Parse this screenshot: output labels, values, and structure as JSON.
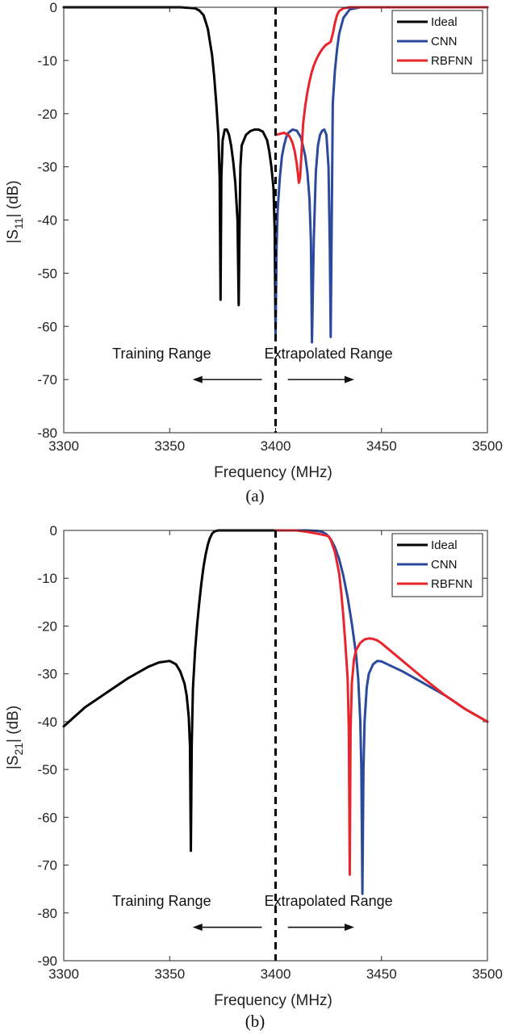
{
  "chart_data": [
    {
      "type": "line",
      "id": "a",
      "caption": "(a)",
      "xlabel": "Frequency (MHz)",
      "ylabel": {
        "pre": "|S",
        "sub": "11",
        "post": "| (dB)"
      },
      "xlim": [
        3300,
        3500
      ],
      "ylim": [
        -80,
        0
      ],
      "xticks": [
        3300,
        3350,
        3400,
        3450,
        3500
      ],
      "yticks": [
        0,
        -10,
        -20,
        -30,
        -40,
        -50,
        -60,
        -70,
        -80
      ],
      "divider_x": 3400,
      "legend": {
        "position": "top-right",
        "entries": [
          "Ideal",
          "CNN",
          "RBFNN"
        ]
      },
      "annotations": {
        "left_text": "Training Range",
        "right_text": "Extrapolated Range",
        "text_y": -66,
        "arrow_y": -70,
        "left_arrow": [
          3336,
          3362
        ],
        "right_arrow": [
          3402,
          3436
        ]
      },
      "series": [
        {
          "name": "Ideal",
          "color": "#000000",
          "x": [
            3300,
            3355,
            3362,
            3364,
            3366,
            3368,
            3370,
            3371,
            3372,
            3373,
            3373.6,
            3374,
            3374.4,
            3375,
            3376,
            3377,
            3378,
            3379,
            3380,
            3381,
            3382,
            3382.6,
            3383,
            3383.4,
            3384,
            3386,
            3388,
            3390,
            3392,
            3394,
            3396,
            3397,
            3398,
            3399,
            3399.6,
            3400
          ],
          "values": [
            0,
            0,
            -0.2,
            -0.6,
            -1.5,
            -4,
            -9,
            -13,
            -18,
            -24,
            -32,
            -55,
            -32,
            -25,
            -23,
            -23,
            -24,
            -26,
            -29,
            -33,
            -40,
            -56,
            -40,
            -30,
            -26,
            -24,
            -23.3,
            -23,
            -23,
            -23.4,
            -25,
            -27,
            -30,
            -34,
            -42,
            -62
          ]
        },
        {
          "name": "CNN",
          "color": "#2b4a9c",
          "x": [
            3400,
            3400.5,
            3401,
            3402,
            3403,
            3404,
            3405,
            3406,
            3408,
            3410,
            3412,
            3414,
            3415,
            3416,
            3416.7,
            3417.2,
            3418,
            3419,
            3420,
            3421,
            3422,
            3423,
            3424,
            3425,
            3425.6,
            3426,
            3427,
            3428,
            3429,
            3430,
            3432,
            3435,
            3440,
            3500
          ],
          "values": [
            -62,
            -45,
            -38,
            -32,
            -28,
            -26,
            -24.5,
            -23.6,
            -23,
            -23.2,
            -24.5,
            -28,
            -31,
            -36,
            -44,
            -63,
            -44,
            -31,
            -26,
            -24,
            -23.2,
            -23,
            -24,
            -30,
            -45,
            -62,
            -18,
            -12,
            -8,
            -5,
            -2,
            -0.4,
            0,
            0
          ]
        },
        {
          "name": "RBFNN",
          "color": "#e8252c",
          "x": [
            3400,
            3402,
            3404,
            3406,
            3407,
            3408,
            3409,
            3410,
            3410.6,
            3411,
            3411.6,
            3412.3,
            3413,
            3414,
            3415,
            3416,
            3417,
            3418,
            3419,
            3420,
            3421,
            3422,
            3423,
            3424,
            3425,
            3426,
            3427,
            3428,
            3429,
            3430,
            3432,
            3435,
            3440,
            3500
          ],
          "values": [
            -24,
            -23.8,
            -23.6,
            -24,
            -24.6,
            -25.5,
            -27,
            -29.5,
            -31.5,
            -33,
            -32,
            -27,
            -22,
            -18.5,
            -16,
            -14,
            -12.3,
            -11,
            -10,
            -9.2,
            -8.5,
            -7.9,
            -7.4,
            -7,
            -6.8,
            -6.5,
            -5,
            -3,
            -1.5,
            -0.7,
            -0.2,
            0,
            0,
            0
          ]
        }
      ]
    },
    {
      "type": "line",
      "id": "b",
      "caption": "(b)",
      "xlabel": "Frequency (MHz)",
      "ylabel": {
        "pre": "|S",
        "sub": "21",
        "post": "| (dB)"
      },
      "xlim": [
        3300,
        3500
      ],
      "ylim": [
        -90,
        0
      ],
      "xticks": [
        3300,
        3350,
        3400,
        3450,
        3500
      ],
      "yticks": [
        0,
        -10,
        -20,
        -30,
        -40,
        -50,
        -60,
        -70,
        -80,
        -90
      ],
      "divider_x": 3400,
      "legend": {
        "position": "top-right",
        "entries": [
          "Ideal",
          "CNN",
          "RBFNN"
        ]
      },
      "annotations": {
        "left_text": "Training Range",
        "right_text": "Extrapolated Range",
        "text_y": -78.5,
        "arrow_y": -83,
        "left_arrow": [
          3336,
          3362
        ],
        "right_arrow": [
          3402,
          3436
        ]
      },
      "series": [
        {
          "name": "Ideal",
          "color": "#000000",
          "x": [
            3300,
            3310,
            3320,
            3330,
            3340,
            3345,
            3350,
            3353,
            3355,
            3357,
            3358,
            3359,
            3359.6,
            3360,
            3360.4,
            3361,
            3362,
            3363,
            3364,
            3365,
            3366,
            3367,
            3368,
            3369,
            3370,
            3371,
            3372,
            3373,
            3374,
            3400
          ],
          "values": [
            -41,
            -37,
            -34,
            -31,
            -28.5,
            -27.6,
            -27.3,
            -28,
            -29.5,
            -32,
            -34.5,
            -39,
            -45,
            -67,
            -45,
            -33,
            -25,
            -19.5,
            -15,
            -11,
            -7.5,
            -5,
            -3,
            -1.6,
            -0.7,
            -0.25,
            -0.08,
            0,
            0,
            0
          ]
        },
        {
          "name": "CNN",
          "color": "#2b4a9c",
          "x": [
            3400,
            3410,
            3415,
            3420,
            3422,
            3424,
            3426,
            3428,
            3430,
            3432,
            3434,
            3436,
            3438,
            3439,
            3440,
            3440.5,
            3441,
            3441.5,
            3442,
            3443,
            3444,
            3446,
            3448,
            3450,
            3460,
            3470,
            3480,
            3490,
            3500
          ],
          "values": [
            0,
            0,
            0,
            -0.1,
            -0.3,
            -0.8,
            -1.8,
            -3.5,
            -6,
            -9.5,
            -14,
            -19.5,
            -26,
            -31,
            -40,
            -50,
            -76,
            -50,
            -40,
            -33,
            -30,
            -28,
            -27.3,
            -27.4,
            -29.5,
            -32,
            -34.5,
            -37.5,
            -40
          ]
        },
        {
          "name": "RBFNN",
          "color": "#e8252c",
          "x": [
            3400,
            3410,
            3415,
            3420,
            3425,
            3426,
            3428,
            3430,
            3431,
            3432,
            3433,
            3434,
            3434.6,
            3435,
            3435.4,
            3436,
            3437,
            3438,
            3440,
            3442,
            3444,
            3446,
            3448,
            3450,
            3460,
            3470,
            3480,
            3490,
            3500
          ],
          "values": [
            0,
            0,
            -0.3,
            -0.7,
            -1.2,
            -2,
            -4.5,
            -9,
            -13,
            -18,
            -24,
            -31,
            -42,
            -72,
            -42,
            -32,
            -27,
            -25,
            -23.5,
            -22.8,
            -22.6,
            -22.7,
            -23,
            -23.6,
            -27.3,
            -31,
            -34.5,
            -37.5,
            -40
          ]
        }
      ]
    }
  ]
}
